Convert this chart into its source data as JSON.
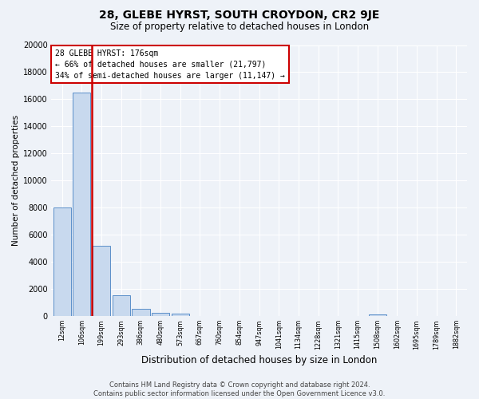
{
  "title": "28, GLEBE HYRST, SOUTH CROYDON, CR2 9JE",
  "subtitle": "Size of property relative to detached houses in London",
  "xlabel": "Distribution of detached houses by size in London",
  "ylabel": "Number of detached properties",
  "footer_line1": "Contains HM Land Registry data © Crown copyright and database right 2024.",
  "footer_line2": "Contains public sector information licensed under the Open Government Licence v3.0.",
  "categories": [
    "12sqm",
    "106sqm",
    "199sqm",
    "293sqm",
    "386sqm",
    "480sqm",
    "573sqm",
    "667sqm",
    "760sqm",
    "854sqm",
    "947sqm",
    "1041sqm",
    "1134sqm",
    "1228sqm",
    "1321sqm",
    "1415sqm",
    "1508sqm",
    "1602sqm",
    "1695sqm",
    "1789sqm",
    "1882sqm"
  ],
  "values": [
    8000,
    16500,
    5200,
    1500,
    500,
    210,
    150,
    0,
    0,
    0,
    0,
    0,
    0,
    0,
    0,
    0,
    110,
    0,
    0,
    0,
    0
  ],
  "bar_color": "#c8d9ee",
  "bar_edge_color": "#5b8fc9",
  "red_line_x": 1.5,
  "highlight_color": "#cc0000",
  "property_label": "28 GLEBE HYRST: 176sqm",
  "pct_smaller": 66,
  "count_smaller": 21797,
  "pct_larger": 34,
  "count_larger": 11147,
  "ylim": [
    0,
    20000
  ],
  "yticks": [
    0,
    2000,
    4000,
    6000,
    8000,
    10000,
    12000,
    14000,
    16000,
    18000,
    20000
  ],
  "background_color": "#eef2f8",
  "grid_color": "#d0d8e8",
  "annotation_box_color": "#ffffff",
  "annotation_box_edge": "#cc0000",
  "title_fontsize": 10,
  "subtitle_fontsize": 8.5,
  "ylabel_fontsize": 7.5,
  "xlabel_fontsize": 8.5,
  "footer_fontsize": 6
}
